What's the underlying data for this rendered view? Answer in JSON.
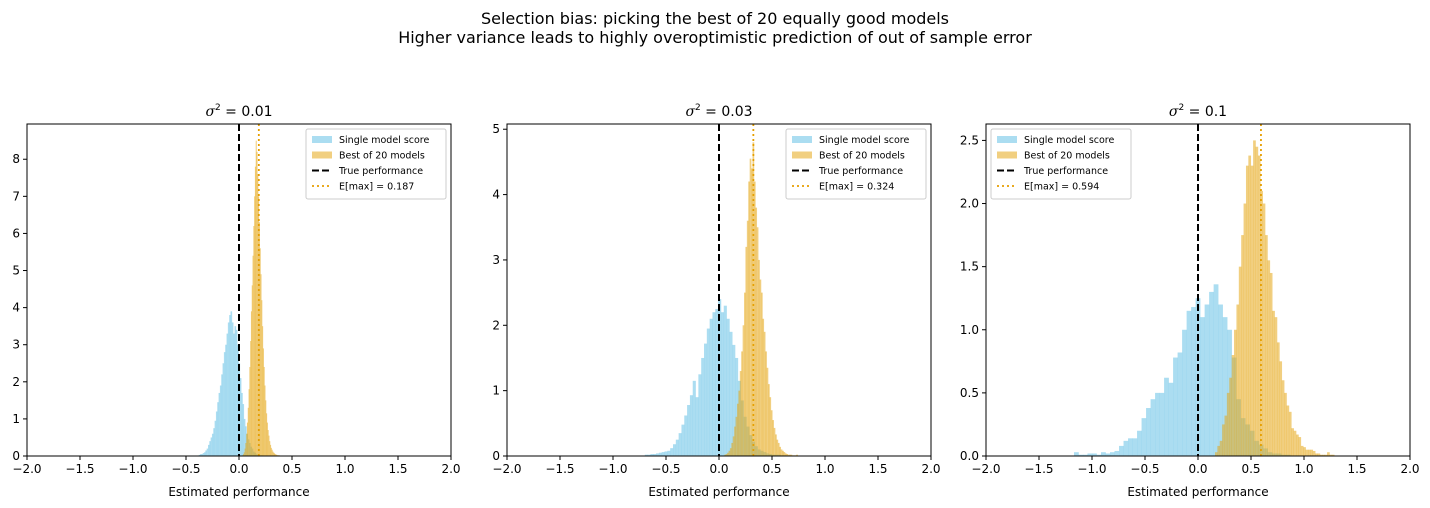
{
  "figure": {
    "suptitle_line1": "Selection bias: picking the best of 20 equally good models",
    "suptitle_line2": "Higher variance leads to highly overoptimistic prediction of out of sample error"
  },
  "colors": {
    "single": "#87CEEB",
    "best": "#E6A817",
    "true_line": "#000000",
    "emax_line": "#E69F00"
  },
  "chart_data": [
    {
      "type": "bar",
      "title_symbol": "σ",
      "title_exp": "2",
      "title_value": " = 0.01",
      "xlabel": "Estimated performance",
      "ylabel": "",
      "xlim": [
        -2.0,
        2.0
      ],
      "ylim": [
        0,
        8.95
      ],
      "xticks": [
        "−2.0",
        "−1.5",
        "−1.0",
        "−0.5",
        "0.0",
        "0.5",
        "1.0",
        "1.5",
        "2.0"
      ],
      "xtick_values": [
        -2.0,
        -1.5,
        -1.0,
        -0.5,
        0.0,
        0.5,
        1.0,
        1.5,
        2.0
      ],
      "yticks": [
        "0",
        "1",
        "2",
        "3",
        "4",
        "5",
        "6",
        "7",
        "8"
      ],
      "ytick_values": [
        0,
        1,
        2,
        3,
        4,
        5,
        6,
        7,
        8
      ],
      "legend_position": "upper right",
      "legend": [
        "Single model score",
        "Best of 20 models",
        "True performance",
        "E[max] = 0.187"
      ],
      "true_value": 0.0,
      "emax": 0.187,
      "series": [
        {
          "name": "Single model score",
          "bin_start": -0.38,
          "bin_width": 0.0125,
          "values": [
            0.03,
            0.05,
            0.05,
            0.08,
            0.1,
            0.15,
            0.2,
            0.3,
            0.4,
            0.5,
            0.6,
            0.75,
            0.95,
            1.2,
            1.45,
            1.7,
            1.9,
            2.2,
            2.5,
            2.8,
            3.0,
            3.3,
            3.6,
            3.8,
            3.9,
            3.6,
            3.3,
            3.5,
            3.4,
            3.0,
            2.5,
            2.1,
            1.7,
            1.4,
            1.0,
            0.8,
            0.6,
            0.45,
            0.35,
            0.25,
            0.2,
            0.12,
            0.09,
            0.06,
            0.04,
            0.03,
            0.02,
            0.02,
            0.01,
            0.01,
            0.01,
            0.01,
            0.01,
            0.01,
            0.01,
            0.01
          ]
        },
        {
          "name": "Best of 20 models",
          "bin_start": 0.03,
          "bin_width": 0.0075,
          "values": [
            0.02,
            0.05,
            0.1,
            0.2,
            0.35,
            0.6,
            0.9,
            1.3,
            1.8,
            2.4,
            3.1,
            3.9,
            4.6,
            5.4,
            6.2,
            7.0,
            7.8,
            8.5,
            8.2,
            7.6,
            7.0,
            6.3,
            5.6,
            4.9,
            4.2,
            3.5,
            2.9,
            2.4,
            1.9,
            1.5,
            1.15,
            0.9,
            0.7,
            0.55,
            0.4,
            0.3,
            0.22,
            0.17,
            0.12,
            0.09,
            0.07,
            0.05,
            0.04,
            0.03,
            0.02,
            0.02,
            0.02,
            0.01,
            0.01,
            0.01,
            0.01,
            0.01,
            0.01
          ]
        }
      ]
    },
    {
      "type": "bar",
      "title_symbol": "σ",
      "title_exp": "2",
      "title_value": " = 0.03",
      "xlabel": "Estimated performance",
      "ylabel": "",
      "xlim": [
        -2.0,
        2.0
      ],
      "ylim": [
        0,
        5.08
      ],
      "xticks": [
        "−2.0",
        "−1.5",
        "−1.0",
        "−0.5",
        "0.0",
        "0.5",
        "1.0",
        "1.5",
        "2.0"
      ],
      "xtick_values": [
        -2.0,
        -1.5,
        -1.0,
        -0.5,
        0.0,
        0.5,
        1.0,
        1.5,
        2.0
      ],
      "yticks": [
        "0",
        "1",
        "2",
        "3",
        "4",
        "5"
      ],
      "ytick_values": [
        0,
        1,
        2,
        3,
        4,
        5
      ],
      "legend_position": "upper right",
      "legend": [
        "Single model score",
        "Best of 20 models",
        "True performance",
        "E[max] = 0.324"
      ],
      "true_value": 0.0,
      "emax": 0.324,
      "series": [
        {
          "name": "Single model score",
          "bin_start": -0.7,
          "bin_width": 0.0266,
          "values": [
            0.02,
            0.02,
            0.03,
            0.03,
            0.04,
            0.05,
            0.06,
            0.07,
            0.08,
            0.12,
            0.18,
            0.25,
            0.35,
            0.48,
            0.62,
            0.78,
            0.93,
            1.15,
            0.9,
            1.25,
            1.5,
            1.72,
            1.95,
            2.1,
            2.2,
            2.25,
            2.4,
            2.2,
            2.3,
            2.1,
            1.9,
            1.7,
            1.5,
            1.15,
            0.85,
            0.6,
            0.45,
            0.32,
            0.22,
            0.15,
            0.1,
            0.08,
            0.06,
            0.04,
            0.03,
            0.02,
            0.02,
            0.02,
            0.01,
            0.01
          ]
        },
        {
          "name": "Best of 20 models",
          "bin_start": 0.05,
          "bin_width": 0.0133,
          "values": [
            0.02,
            0.03,
            0.05,
            0.08,
            0.12,
            0.2,
            0.3,
            0.45,
            0.6,
            0.8,
            1.0,
            1.3,
            1.6,
            2.0,
            2.5,
            3.2,
            3.6,
            4.2,
            4.55,
            4.4,
            4.8,
            4.2,
            3.8,
            3.5,
            3.0,
            2.7,
            2.5,
            2.1,
            1.9,
            1.6,
            1.35,
            1.1,
            0.9,
            0.7,
            0.55,
            0.43,
            0.33,
            0.25,
            0.2,
            0.14,
            0.1,
            0.08,
            0.06,
            0.04,
            0.03,
            0.02,
            0.02,
            0.02,
            0.01,
            0.01,
            0.01,
            0.02
          ]
        }
      ]
    },
    {
      "type": "bar",
      "title_symbol": "σ",
      "title_exp": "2",
      "title_value": " = 0.1",
      "xlabel": "Estimated performance",
      "ylabel": "",
      "xlim": [
        -2.0,
        2.0
      ],
      "ylim": [
        0,
        2.63
      ],
      "xticks": [
        "−2.0",
        "−1.5",
        "−1.0",
        "−0.5",
        "0.0",
        "0.5",
        "1.0",
        "1.5",
        "2.0"
      ],
      "xtick_values": [
        -2.0,
        -1.5,
        -1.0,
        -0.5,
        0.0,
        0.5,
        1.0,
        1.5,
        2.0
      ],
      "yticks": [
        "0.0",
        "0.5",
        "1.0",
        "1.5",
        "2.0",
        "2.5"
      ],
      "ytick_values": [
        0.0,
        0.5,
        1.0,
        1.5,
        2.0,
        2.5
      ],
      "legend_position": "upper left",
      "legend": [
        "Single model score",
        "Best of 20 models",
        "True performance",
        "E[max] = 0.594"
      ],
      "true_value": 0.0,
      "emax": 0.594,
      "series": [
        {
          "name": "Single model score",
          "bin_start": -1.17,
          "bin_width": 0.0425,
          "values": [
            0.03,
            0.01,
            0.01,
            0.02,
            0.02,
            0.01,
            0.03,
            0.02,
            0.03,
            0.04,
            0.08,
            0.12,
            0.14,
            0.14,
            0.2,
            0.3,
            0.38,
            0.45,
            0.5,
            0.5,
            0.62,
            0.58,
            0.78,
            0.82,
            1.0,
            1.15,
            1.18,
            1.25,
            1.1,
            1.2,
            1.3,
            1.36,
            1.2,
            1.1,
            1.0,
            0.78,
            0.45,
            0.3,
            0.25,
            0.2,
            0.12,
            0.09,
            0.06,
            0.03,
            0.02,
            0.02,
            0.01,
            0.01
          ]
        },
        {
          "name": "Best of 20 models",
          "bin_start": 0.16,
          "bin_width": 0.0225,
          "values": [
            0.03,
            0.08,
            0.12,
            0.25,
            0.32,
            0.5,
            0.62,
            0.8,
            1.0,
            1.2,
            1.5,
            1.75,
            2.0,
            2.3,
            2.38,
            2.3,
            2.5,
            2.45,
            2.38,
            2.1,
            2.0,
            1.75,
            1.55,
            1.45,
            1.15,
            1.1,
            0.9,
            0.75,
            0.6,
            0.5,
            0.4,
            0.35,
            0.22,
            0.2,
            0.17,
            0.15,
            0.08,
            0.07,
            0.05,
            0.05,
            0.05,
            0.04,
            0.02,
            0.02,
            0.01,
            0.01,
            0.01,
            0.03,
            0.01,
            0.01
          ]
        }
      ]
    }
  ]
}
